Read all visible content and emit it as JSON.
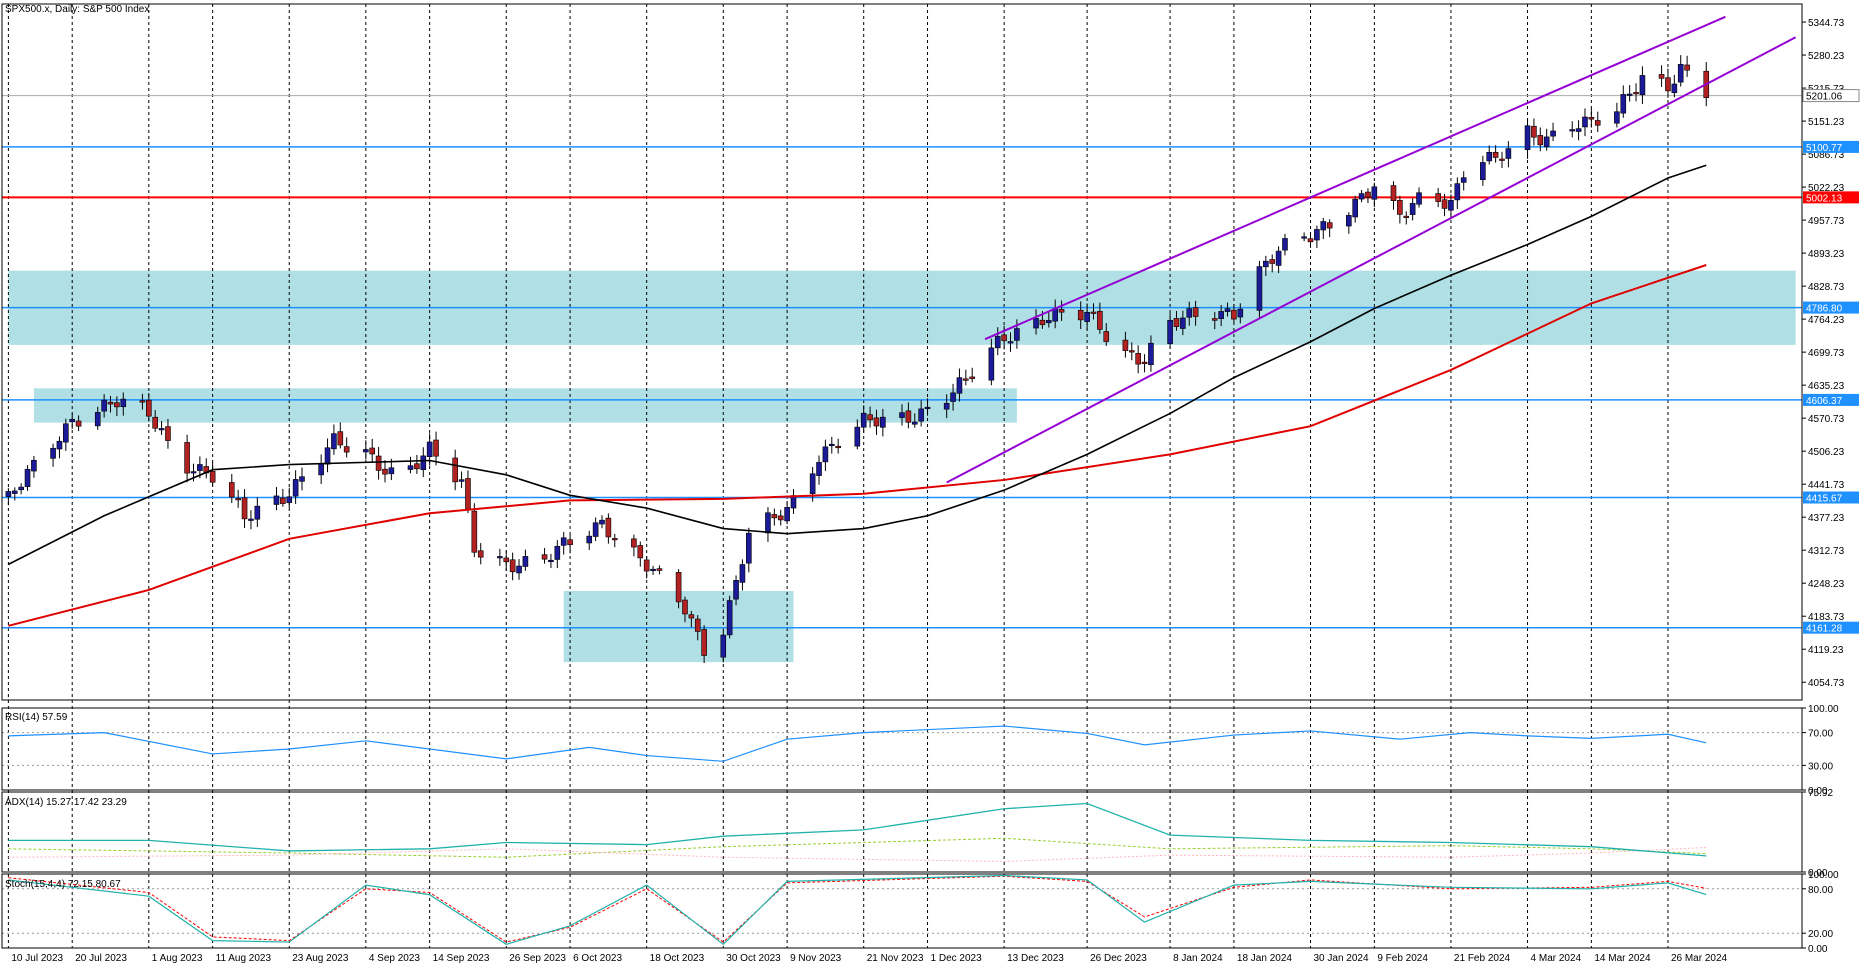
{
  "chart_title": "SPX500.x, Daily:  S&P 500 Index",
  "colors": {
    "bull": "#1b1b9a",
    "bear": "#b22222",
    "ma_fast": "#000000",
    "ma_slow": "#e00000",
    "channel": "#9400d3",
    "level_blue": "#1e90ff",
    "level_red": "#ff0000",
    "zone": "#b0e0e6",
    "rsi": "#1e90ff",
    "adx": "#20b2aa",
    "di_plus": "#9acd32",
    "di_minus": "#ffb6c1",
    "stoch_main": "#20b2aa",
    "stoch_signal": "#ff0000"
  },
  "chart_data": [
    {
      "type": "candlestick",
      "title": "SPX500.x, Daily:  S&P 500 Index",
      "ylim": [
        4020,
        5380
      ],
      "y_ticks": [
        "5344.73",
        "5280.23",
        "5215.73",
        "5151.23",
        "5086.73",
        "5022.23",
        "4957.73",
        "4893.23",
        "4828.73",
        "4764.23",
        "4699.73",
        "4635.23",
        "4570.73",
        "4506.23",
        "4441.73",
        "4377.23",
        "4312.73",
        "4248.23",
        "4183.73",
        "4119.23",
        "4054.73"
      ],
      "x_labels": [
        "10 Jul 2023",
        "20 Jul 2023",
        "1 Aug 2023",
        "11 Aug 2023",
        "23 Aug 2023",
        "4 Sep 2023",
        "14 Sep 2023",
        "26 Sep 2023",
        "6 Oct 2023",
        "18 Oct 2023",
        "30 Oct 2023",
        "9 Nov 2023",
        "21 Nov 2023",
        "1 Dec 2023",
        "13 Dec 2023",
        "26 Dec 2023",
        "8 Jan 2024",
        "18 Jan 2024",
        "30 Jan 2024",
        "9 Feb 2024",
        "21 Feb 2024",
        "4 Mar 2024",
        "14 Mar 2024",
        "26 Mar 2024"
      ],
      "close_path": [
        [
          "10 Jul 2023",
          4410
        ],
        [
          "20 Jul 2023",
          4570
        ],
        [
          "27 Jul 2023",
          4600
        ],
        [
          "1 Aug 2023",
          4580
        ],
        [
          "6 Aug 2023",
          4490
        ],
        [
          "11 Aug 2023",
          4455
        ],
        [
          "16 Aug 2023",
          4375
        ],
        [
          "23 Aug 2023",
          4430
        ],
        [
          "30 Aug 2023",
          4520
        ],
        [
          "4 Sep 2023",
          4500
        ],
        [
          "9 Sep 2023",
          4460
        ],
        [
          "14 Sep 2023",
          4505
        ],
        [
          "19 Sep 2023",
          4440
        ],
        [
          "21 Sep 2023",
          4320
        ],
        [
          "26 Sep 2023",
          4290
        ],
        [
          "1 Oct 2023",
          4280
        ],
        [
          "6 Oct 2023",
          4330
        ],
        [
          "11 Oct 2023",
          4370
        ],
        [
          "18 Oct 2023",
          4280
        ],
        [
          "24 Oct 2023",
          4200
        ],
        [
          "27 Oct 2023",
          4125
        ],
        [
          "30 Oct 2023",
          4160
        ],
        [
          "3 Nov 2023",
          4340
        ],
        [
          "9 Nov 2023",
          4390
        ],
        [
          "14 Nov 2023",
          4500
        ],
        [
          "21 Nov 2023",
          4560
        ],
        [
          "27 Nov 2023",
          4570
        ],
        [
          "1 Dec 2023",
          4590
        ],
        [
          "7 Dec 2023",
          4640
        ],
        [
          "13 Dec 2023",
          4730
        ],
        [
          "19 Dec 2023",
          4770
        ],
        [
          "26 Dec 2023",
          4770
        ],
        [
          "1 Jan 2024",
          4700
        ],
        [
          "4 Jan 2024",
          4690
        ],
        [
          "8 Jan 2024",
          4755
        ],
        [
          "13 Jan 2024",
          4770
        ],
        [
          "18 Jan 2024",
          4780
        ],
        [
          "22 Jan 2024",
          4860
        ],
        [
          "25 Jan 2024",
          4895
        ],
        [
          "30 Jan 2024",
          4925
        ],
        [
          "4 Feb 2024",
          4975
        ],
        [
          "9 Feb 2024",
          5025
        ],
        [
          "13 Feb 2024",
          4960
        ],
        [
          "17 Feb 2024",
          5010
        ],
        [
          "21 Feb 2024",
          4995
        ],
        [
          "24 Feb 2024",
          5085
        ],
        [
          "28 Feb 2024",
          5070
        ],
        [
          "4 Mar 2024",
          5125
        ],
        [
          "7 Mar 2024",
          5120
        ],
        [
          "11 Mar 2024",
          5150
        ],
        [
          "14 Mar 2024",
          5145
        ],
        [
          "18 Mar 2024",
          5165
        ],
        [
          "22 Mar 2024",
          5240
        ],
        [
          "26 Mar 2024",
          5225
        ],
        [
          "28 Mar 2024",
          5254
        ],
        [
          "1 Apr 2024",
          5205
        ]
      ],
      "ma_fast": [
        [
          "10 Jul 2023",
          4285
        ],
        [
          "25 Jul 2023",
          4380
        ],
        [
          "11 Aug 2023",
          4470
        ],
        [
          "23 Aug 2023",
          4480
        ],
        [
          "14 Sep 2023",
          4488
        ],
        [
          "26 Sep 2023",
          4460
        ],
        [
          "6 Oct 2023",
          4420
        ],
        [
          "18 Oct 2023",
          4395
        ],
        [
          "30 Oct 2023",
          4355
        ],
        [
          "9 Nov 2023",
          4345
        ],
        [
          "21 Nov 2023",
          4355
        ],
        [
          "1 Dec 2023",
          4380
        ],
        [
          "13 Dec 2023",
          4430
        ],
        [
          "26 Dec 2023",
          4500
        ],
        [
          "8 Jan 2024",
          4580
        ],
        [
          "18 Jan 2024",
          4650
        ],
        [
          "30 Jan 2024",
          4720
        ],
        [
          "9 Feb 2024",
          4785
        ],
        [
          "21 Feb 2024",
          4850
        ],
        [
          "4 Mar 2024",
          4910
        ],
        [
          "14 Mar 2024",
          4965
        ],
        [
          "26 Mar 2024",
          5040
        ],
        [
          "1 Apr 2024",
          5065
        ]
      ],
      "ma_slow": [
        [
          "10 Jul 2023",
          4165
        ],
        [
          "1 Aug 2023",
          4235
        ],
        [
          "23 Aug 2023",
          4335
        ],
        [
          "14 Sep 2023",
          4385
        ],
        [
          "6 Oct 2023",
          4410
        ],
        [
          "30 Oct 2023",
          4413
        ],
        [
          "21 Nov 2023",
          4423
        ],
        [
          "13 Dec 2023",
          4450
        ],
        [
          "8 Jan 2024",
          4500
        ],
        [
          "30 Jan 2024",
          4555
        ],
        [
          "21 Feb 2024",
          4665
        ],
        [
          "14 Mar 2024",
          4795
        ],
        [
          "1 Apr 2024",
          4870
        ]
      ],
      "channel_upper": [
        [
          "10 Dec 2023",
          4725
        ],
        [
          "4 Apr 2024",
          5355
        ]
      ],
      "channel_lower": [
        [
          "4 Dec 2023",
          4445
        ],
        [
          "15 Apr 2024",
          5315
        ]
      ],
      "levels": [
        {
          "value": 5100.77,
          "label": "5100.77",
          "color": "#1e90ff"
        },
        {
          "value": 5002.13,
          "label": "5002.13",
          "color": "#ff0000"
        },
        {
          "value": 4786.8,
          "label": "4786.80",
          "color": "#1e90ff"
        },
        {
          "value": 4606.37,
          "label": "4606.37",
          "color": "#1e90ff"
        },
        {
          "value": 4415.67,
          "label": "4415.67",
          "color": "#1e90ff"
        },
        {
          "value": 4161.28,
          "label": "4161.28",
          "color": "#1e90ff"
        }
      ],
      "current_price": {
        "value": 5201.06,
        "label": "5201.06"
      },
      "zones": [
        {
          "from": "10 Jul 2023",
          "to": "15 Apr 2024",
          "low": 4714,
          "high": 4859
        },
        {
          "from": "14 Jul 2023",
          "to": "15 Dec 2023",
          "low": 4562,
          "high": 4629
        },
        {
          "from": "5 Oct 2023",
          "to": "10 Nov 2023",
          "low": 4094,
          "high": 4233
        }
      ]
    },
    {
      "type": "line",
      "title": "RSI(14) 57.59",
      "ylim": [
        0,
        100
      ],
      "y_ticks": [
        "100.00",
        "70.00",
        "30.00",
        "0.00"
      ],
      "series": [
        {
          "name": "RSI(14)",
          "last": 57.59,
          "points": [
            [
              "10 Jul 2023",
              66
            ],
            [
              "25 Jul 2023",
              70
            ],
            [
              "11 Aug 2023",
              44
            ],
            [
              "23 Aug 2023",
              50
            ],
            [
              "4 Sep 2023",
              60
            ],
            [
              "26 Sep 2023",
              38
            ],
            [
              "9 Oct 2023",
              52
            ],
            [
              "18 Oct 2023",
              42
            ],
            [
              "30 Oct 2023",
              35
            ],
            [
              "9 Nov 2023",
              62
            ],
            [
              "21 Nov 2023",
              70
            ],
            [
              "13 Dec 2023",
              78
            ],
            [
              "26 Dec 2023",
              69
            ],
            [
              "4 Jan 2024",
              55
            ],
            [
              "18 Jan 2024",
              67
            ],
            [
              "30 Jan 2024",
              72
            ],
            [
              "13 Feb 2024",
              62
            ],
            [
              "24 Feb 2024",
              70
            ],
            [
              "4 Mar 2024",
              66
            ],
            [
              "14 Mar 2024",
              63
            ],
            [
              "26 Mar 2024",
              68
            ],
            [
              "1 Apr 2024",
              57.59
            ]
          ]
        }
      ]
    },
    {
      "type": "line",
      "title": "ADX(14) 15.27 17.42 23.29",
      "ylim": [
        0,
        75.92
      ],
      "y_ticks": [
        "75.92",
        "0.00"
      ],
      "series": [
        {
          "name": "ADX(14)",
          "last": 15.27,
          "points": [
            [
              "10 Jul 2023",
              30
            ],
            [
              "1 Aug 2023",
              30
            ],
            [
              "23 Aug 2023",
              20
            ],
            [
              "14 Sep 2023",
              22
            ],
            [
              "26 Sep 2023",
              28
            ],
            [
              "18 Oct 2023",
              26
            ],
            [
              "30 Oct 2023",
              34
            ],
            [
              "21 Nov 2023",
              40
            ],
            [
              "13 Dec 2023",
              60
            ],
            [
              "26 Dec 2023",
              65
            ],
            [
              "8 Jan 2024",
              35
            ],
            [
              "30 Jan 2024",
              30
            ],
            [
              "21 Feb 2024",
              28
            ],
            [
              "14 Mar 2024",
              24
            ],
            [
              "1 Apr 2024",
              15.27
            ]
          ]
        },
        {
          "name": "+DI",
          "last": 17.42,
          "points": [
            [
              "10 Jul 2023",
              22
            ],
            [
              "23 Aug 2023",
              18
            ],
            [
              "26 Sep 2023",
              14
            ],
            [
              "30 Oct 2023",
              24
            ],
            [
              "13 Dec 2023",
              32
            ],
            [
              "8 Jan 2024",
              22
            ],
            [
              "21 Feb 2024",
              25
            ],
            [
              "14 Mar 2024",
              22
            ],
            [
              "1 Apr 2024",
              17.42
            ]
          ]
        },
        {
          "name": "-DI",
          "last": 23.29,
          "points": [
            [
              "10 Jul 2023",
              14
            ],
            [
              "23 Aug 2023",
              16
            ],
            [
              "26 Sep 2023",
              22
            ],
            [
              "30 Oct 2023",
              14
            ],
            [
              "13 Dec 2023",
              10
            ],
            [
              "8 Jan 2024",
              16
            ],
            [
              "21 Feb 2024",
              14
            ],
            [
              "14 Mar 2024",
              18
            ],
            [
              "1 Apr 2024",
              23.29
            ]
          ]
        }
      ]
    },
    {
      "type": "line",
      "title": "Stoch(15,4,4) 72.15 80.67",
      "ylim": [
        0,
        100
      ],
      "y_ticks": [
        "100.00",
        "80.00",
        "20.00",
        "0.00"
      ],
      "series": [
        {
          "name": "Stoch main",
          "last": 72.15,
          "points": [
            [
              "10 Jul 2023",
              92
            ],
            [
              "1 Aug 2023",
              70
            ],
            [
              "11 Aug 2023",
              10
            ],
            [
              "23 Aug 2023",
              8
            ],
            [
              "4 Sep 2023",
              85
            ],
            [
              "14 Sep 2023",
              72
            ],
            [
              "26 Sep 2023",
              5
            ],
            [
              "6 Oct 2023",
              30
            ],
            [
              "18 Oct 2023",
              85
            ],
            [
              "30 Oct 2023",
              5
            ],
            [
              "9 Nov 2023",
              90
            ],
            [
              "13 Dec 2023",
              98
            ],
            [
              "26 Dec 2023",
              92
            ],
            [
              "4 Jan 2024",
              35
            ],
            [
              "18 Jan 2024",
              85
            ],
            [
              "30 Jan 2024",
              90
            ],
            [
              "21 Feb 2024",
              82
            ],
            [
              "14 Mar 2024",
              80
            ],
            [
              "26 Mar 2024",
              88
            ],
            [
              "1 Apr 2024",
              72.15
            ]
          ]
        },
        {
          "name": "Stoch signal",
          "last": 80.67,
          "points": [
            [
              "10 Jul 2023",
              95
            ],
            [
              "1 Aug 2023",
              75
            ],
            [
              "11 Aug 2023",
              15
            ],
            [
              "23 Aug 2023",
              10
            ],
            [
              "4 Sep 2023",
              80
            ],
            [
              "14 Sep 2023",
              75
            ],
            [
              "26 Sep 2023",
              8
            ],
            [
              "6 Oct 2023",
              28
            ],
            [
              "18 Oct 2023",
              80
            ],
            [
              "30 Oct 2023",
              8
            ],
            [
              "9 Nov 2023",
              88
            ],
            [
              "13 Dec 2023",
              97
            ],
            [
              "26 Dec 2023",
              90
            ],
            [
              "4 Jan 2024",
              42
            ],
            [
              "18 Jan 2024",
              82
            ],
            [
              "30 Jan 2024",
              92
            ],
            [
              "21 Feb 2024",
              80
            ],
            [
              "14 Mar 2024",
              82
            ],
            [
              "26 Mar 2024",
              90
            ],
            [
              "1 Apr 2024",
              80.67
            ]
          ]
        }
      ]
    }
  ]
}
